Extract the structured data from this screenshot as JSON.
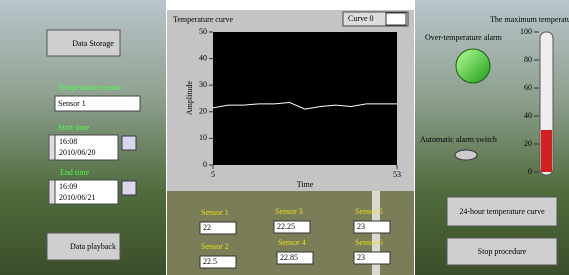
{
  "left_panel": {
    "data_storage_button": "Data Storage",
    "sensor_label": "Temperature sensor",
    "sensor_value": "Sensor 1",
    "start_label": "Start time",
    "start_time": "16:08",
    "start_date": "2010/06/20",
    "end_label": "End time",
    "end_time": "16:09",
    "end_date": "2010/06/21",
    "playback_button": "Data playback"
  },
  "chart": {
    "title": "Temperature curve",
    "legend": "Curve 0",
    "y_label": "Amplitude",
    "x_label": "Time",
    "xlim": [
      5,
      53
    ],
    "ylim": [
      0,
      50
    ],
    "xticks": [
      5,
      53
    ],
    "yticks": [
      0,
      10,
      20,
      30,
      40,
      50
    ],
    "x": [
      5,
      9,
      13,
      17,
      21,
      25,
      29,
      33,
      37,
      41,
      45,
      49,
      53
    ],
    "values": [
      21.5,
      22.5,
      22.5,
      23,
      23,
      23.5,
      21,
      22,
      22.5,
      22,
      23,
      23,
      23
    ]
  },
  "sensors": [
    {
      "name": "Sensor 1",
      "value": 22
    },
    {
      "name": "Sensor 2",
      "value": 22.5
    },
    {
      "name": "Sensor 3",
      "value": 22.25
    },
    {
      "name": "Sensor 4",
      "value": 22.85
    },
    {
      "name": "Sensor 5",
      "value": 23
    },
    {
      "name": "Sensor 6",
      "value": 23
    }
  ],
  "right_panel": {
    "max_temp_label": "The maximum temperature",
    "alarm_label": "Over-temperature alarm",
    "switch_label": "Automatic alarm switch",
    "gauge": {
      "ylim": [
        0,
        100
      ],
      "yticks": [
        0,
        20,
        40,
        60,
        80,
        100
      ],
      "value": 30
    },
    "curve_button": "24-hour temperature curve",
    "stop_button": "Stop procedure"
  }
}
